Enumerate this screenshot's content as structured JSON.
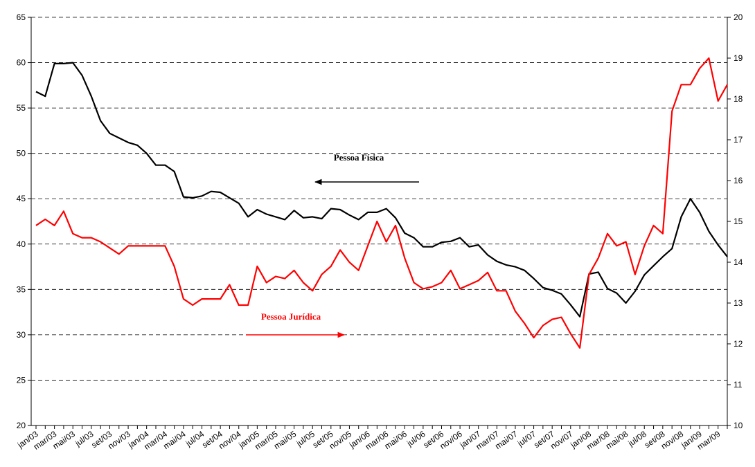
{
  "chart_data": {
    "type": "line",
    "categories": [
      "jan/03",
      null,
      "mar/03",
      null,
      "mai/03",
      null,
      "jul/03",
      null,
      "set/03",
      null,
      "nov/03",
      null,
      "jan/04",
      null,
      "mar/04",
      null,
      "mai/04",
      null,
      "jul/04",
      null,
      "set/04",
      null,
      "nov/04",
      null,
      "jan/05",
      null,
      "mar/05",
      null,
      "mai/05",
      null,
      "jul/05",
      null,
      "set/05",
      null,
      "nov/05",
      null,
      "jan/06",
      null,
      "mar/06",
      null,
      "mai/06",
      null,
      "jul/06",
      null,
      "set/06",
      null,
      "nov/06",
      null,
      "jan/07",
      null,
      "mar/07",
      null,
      "mai/07",
      null,
      "jul/07",
      null,
      "set/07",
      null,
      "nov/07",
      null,
      "jan/08",
      null,
      "mar/08",
      null,
      "mai/08",
      null,
      "jul/08",
      null,
      "set/08",
      null,
      "nov/08",
      null,
      "jan/09",
      null,
      "mar/09",
      null
    ],
    "series": [
      {
        "name": "Pessoa Física",
        "color": "#000000",
        "values": [
          56.8,
          56.3,
          59.9,
          59.9,
          60.0,
          58.6,
          56.3,
          53.6,
          52.2,
          51.7,
          51.2,
          50.9,
          50.0,
          48.7,
          48.7,
          48.0,
          45.2,
          45.1,
          45.3,
          45.8,
          45.7,
          45.1,
          44.5,
          43.0,
          43.8,
          43.3,
          43.0,
          42.7,
          43.7,
          42.9,
          43.0,
          42.8,
          43.9,
          43.8,
          43.2,
          42.7,
          43.5,
          43.5,
          43.9,
          42.9,
          41.2,
          40.7,
          39.7,
          39.7,
          40.2,
          40.3,
          40.7,
          39.7,
          39.9,
          38.8,
          38.1,
          37.7,
          37.5,
          37.1,
          36.2,
          35.2,
          34.9,
          34.5,
          33.3,
          32.0,
          36.7,
          36.9,
          35.1,
          34.6,
          33.5,
          34.8,
          36.6,
          37.6,
          38.6,
          39.5,
          43.0,
          45.0,
          43.5,
          41.4,
          39.9,
          38.6
        ]
      },
      {
        "name": "Pessoa Jurídica",
        "color": "#ff0000",
        "axis": "y2",
        "values": [
          14.9,
          15.05,
          14.9,
          15.25,
          14.7,
          14.6,
          14.6,
          14.5,
          14.35,
          14.2,
          14.4,
          14.4,
          14.4,
          14.4,
          14.4,
          13.9,
          13.1,
          12.95,
          13.1,
          13.1,
          13.1,
          13.45,
          12.95,
          12.95,
          13.9,
          13.5,
          13.65,
          13.6,
          13.8,
          13.5,
          13.3,
          13.7,
          13.9,
          14.3,
          14.0,
          13.8,
          14.4,
          15.0,
          14.5,
          14.9,
          14.1,
          13.5,
          13.35,
          13.4,
          13.5,
          13.8,
          13.35,
          13.45,
          13.55,
          13.75,
          13.3,
          13.3,
          12.8,
          12.5,
          12.15,
          12.45,
          12.6,
          12.65,
          12.25,
          11.9,
          13.7,
          14.1,
          14.7,
          14.4,
          14.5,
          13.7,
          14.4,
          14.9,
          14.7,
          17.7,
          18.35,
          18.35,
          18.75,
          19.0,
          17.95,
          18.35
        ]
      }
    ],
    "ylim": [
      20,
      65
    ],
    "yticks": [
      20,
      25,
      30,
      35,
      40,
      45,
      50,
      55,
      60,
      65
    ],
    "y2lim": [
      10,
      20
    ],
    "y2ticks": [
      10,
      11,
      12,
      13,
      14,
      15,
      16,
      17,
      18,
      19,
      20
    ],
    "grid": true
  }
}
